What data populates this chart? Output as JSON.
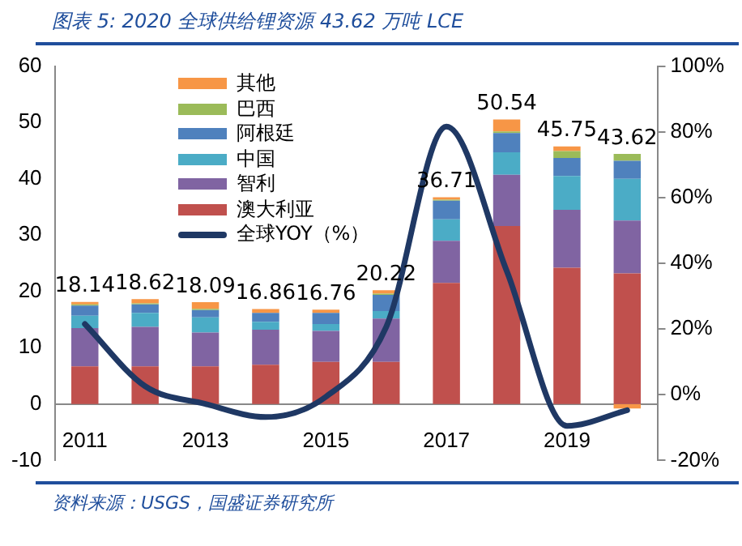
{
  "chart_data": {
    "type": "bar",
    "title": "图表 5:  2020 全球供给锂资源 43.62 万吨 LCE",
    "stacked": true,
    "categories": [
      "2011",
      null,
      "2013",
      null,
      "2015",
      null,
      "2017",
      null,
      "2019",
      null
    ],
    "series": [
      {
        "name": "澳大利亚",
        "color": "#c0504d",
        "values": [
          6.7,
          6.7,
          6.7,
          7.0,
          7.5,
          7.5,
          21.5,
          31.6,
          24.2,
          23.2
        ]
      },
      {
        "name": "智利",
        "color": "#8064a2",
        "values": [
          6.8,
          7.0,
          6.0,
          6.2,
          5.5,
          7.7,
          7.5,
          9.1,
          10.3,
          9.4
        ]
      },
      {
        "name": "中国",
        "color": "#4bacc6",
        "values": [
          2.2,
          2.5,
          2.7,
          1.4,
          1.2,
          1.3,
          3.8,
          4.0,
          6.0,
          7.4
        ]
      },
      {
        "name": "阿根廷",
        "color": "#4f81bd",
        "values": [
          1.8,
          1.5,
          1.3,
          1.6,
          2.0,
          2.9,
          3.3,
          3.4,
          3.2,
          3.2
        ]
      },
      {
        "name": "巴西",
        "color": "#9bbb59",
        "values": [
          0.2,
          0.2,
          0.2,
          null,
          null,
          0.2,
          0.2,
          0.3,
          1.2,
          1.2
        ]
      },
      {
        "name": "其他",
        "color": "#f79646",
        "values": [
          0.44,
          0.72,
          1.19,
          0.66,
          0.56,
          0.62,
          0.41,
          2.14,
          0.85,
          -0.78
        ]
      },
      {
        "name": "全球YOY（%）",
        "type": "line",
        "axis": "y2",
        "color": "#1f3864",
        "line_style": "solid",
        "marker": "none",
        "values": [
          21.5,
          2.6,
          -2.8,
          -6.8,
          -0.6,
          20.6,
          81.6,
          37.7,
          -9.5,
          -4.7
        ]
      }
    ],
    "totals": [
      "18.14",
      "18.62",
      "18.09",
      "16.86",
      "16.76",
      "20.22",
      "36.71",
      "50.54",
      "45.75",
      "43.62"
    ],
    "ylim": [
      -10,
      60
    ],
    "yticks": [
      -10,
      0,
      10,
      20,
      30,
      40,
      50,
      60
    ],
    "y2lim": [
      -20,
      100
    ],
    "y2ticks": [
      {
        "value": -20,
        "label": "-20%"
      },
      {
        "value": 0,
        "label": "0%"
      },
      {
        "value": 20,
        "label": "20%"
      },
      {
        "value": 40,
        "label": "40%"
      },
      {
        "value": 60,
        "label": "60%"
      },
      {
        "value": 80,
        "label": "80%"
      },
      {
        "value": 100,
        "label": "100%"
      }
    ],
    "grid": false,
    "legend": "top left",
    "annotations": [
      "资料来源：USGS，国盛证券研究所"
    ]
  }
}
